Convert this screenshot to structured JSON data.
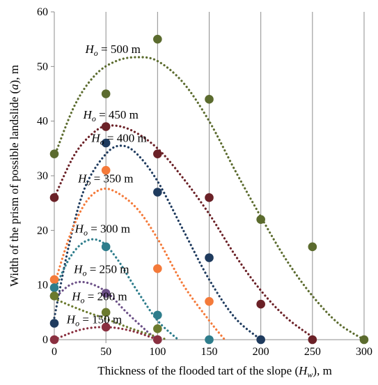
{
  "chart_data": {
    "type": "scatter",
    "xlabel_main": "Thickness of the flooded tart of the slope (",
    "xlabel_var": "H",
    "xlabel_sub": "w",
    "xlabel_tail": "), m",
    "ylabel_main": "Width of the prism of possible landslide (",
    "ylabel_var": "a",
    "ylabel_tail": "), m",
    "xlim": [
      0,
      300
    ],
    "ylim": [
      0,
      60
    ],
    "x_ticks": [
      0,
      50,
      100,
      150,
      200,
      250,
      300
    ],
    "y_ticks": [
      0,
      10,
      20,
      30,
      40,
      50,
      60
    ],
    "grid": "vertical",
    "series": [
      {
        "name": "Ho = 500 m",
        "label_var": "H",
        "label_sub": "o",
        "label_tail": " = 500 m",
        "color": "#5b6b2e",
        "points": [
          [
            0,
            34
          ],
          [
            50,
            45
          ],
          [
            100,
            55
          ],
          [
            150,
            44
          ],
          [
            200,
            22
          ],
          [
            250,
            17
          ],
          [
            300,
            0
          ]
        ],
        "trend": [
          [
            0,
            33.5
          ],
          [
            20,
            43
          ],
          [
            40,
            48.5
          ],
          [
            60,
            51
          ],
          [
            80,
            51.7
          ],
          [
            100,
            51
          ],
          [
            125,
            47
          ],
          [
            150,
            40
          ],
          [
            175,
            31
          ],
          [
            200,
            22.5
          ],
          [
            225,
            14.5
          ],
          [
            250,
            8
          ],
          [
            275,
            3
          ],
          [
            300,
            0
          ]
        ]
      },
      {
        "name": "Ho = 450 m",
        "label_var": "H",
        "label_sub": "o",
        "label_tail": " = 450 m",
        "color": "#6b2127",
        "points": [
          [
            0,
            26
          ],
          [
            50,
            39
          ],
          [
            100,
            34
          ],
          [
            150,
            26
          ],
          [
            200,
            6.5
          ],
          [
            250,
            0
          ]
        ],
        "trend": [
          [
            0,
            26
          ],
          [
            20,
            34
          ],
          [
            40,
            38.2
          ],
          [
            55,
            39.2
          ],
          [
            75,
            38.3
          ],
          [
            100,
            35
          ],
          [
            125,
            29.5
          ],
          [
            150,
            23
          ],
          [
            175,
            15.5
          ],
          [
            200,
            9
          ],
          [
            225,
            4
          ],
          [
            250,
            0.5
          ]
        ]
      },
      {
        "name": "Ho = 400 m",
        "label_var": "H",
        "label_sub": "o",
        "label_tail": " = 400 m",
        "color": "#1f3b5e",
        "points": [
          [
            0,
            3
          ],
          [
            50,
            36
          ],
          [
            100,
            27
          ],
          [
            150,
            15
          ],
          [
            200,
            0
          ]
        ],
        "trend": [
          [
            0,
            4
          ],
          [
            15,
            18
          ],
          [
            30,
            28
          ],
          [
            50,
            34
          ],
          [
            65,
            35.5
          ],
          [
            80,
            34
          ],
          [
            100,
            29
          ],
          [
            125,
            20
          ],
          [
            150,
            11
          ],
          [
            175,
            4
          ],
          [
            200,
            0
          ]
        ]
      },
      {
        "name": "Ho = 350 m",
        "label_var": "H",
        "label_sub": "o",
        "label_tail": " = 350 m",
        "color": "#f47a3a",
        "points": [
          [
            0,
            11
          ],
          [
            50,
            31
          ],
          [
            100,
            13
          ],
          [
            150,
            7
          ]
        ],
        "trend": [
          [
            0,
            10
          ],
          [
            15,
            19
          ],
          [
            30,
            25
          ],
          [
            45,
            27.5
          ],
          [
            60,
            27
          ],
          [
            80,
            24
          ],
          [
            100,
            18.5
          ],
          [
            125,
            10
          ],
          [
            150,
            3.5
          ],
          [
            165,
            0
          ]
        ]
      },
      {
        "name": "Ho = 300 m",
        "label_var": "H",
        "label_sub": "o",
        "label_tail": " = 300 m",
        "color": "#2e7d8c",
        "points": [
          [
            0,
            9.5
          ],
          [
            50,
            17
          ],
          [
            100,
            4.5
          ],
          [
            150,
            0
          ]
        ],
        "trend": [
          [
            0,
            9
          ],
          [
            15,
            15
          ],
          [
            30,
            18
          ],
          [
            45,
            18
          ],
          [
            60,
            15
          ],
          [
            80,
            9
          ],
          [
            100,
            3.5
          ],
          [
            120,
            0
          ]
        ]
      },
      {
        "name": "Ho = 250 m",
        "label_var": "H",
        "label_sub": "o",
        "label_tail": " = 250 m",
        "color": "#6b4f86",
        "points": [
          [
            0,
            8
          ],
          [
            50,
            8.5
          ],
          [
            100,
            0
          ]
        ],
        "trend": [
          [
            0,
            7.5
          ],
          [
            15,
            10
          ],
          [
            30,
            10.5
          ],
          [
            50,
            8.8
          ],
          [
            70,
            5
          ],
          [
            90,
            1.5
          ],
          [
            100,
            0
          ]
        ]
      },
      {
        "name": "Ho = 200 m",
        "label_var": "H",
        "label_sub": "o",
        "label_tail": " = 200 m",
        "color": "#6b7a2e",
        "points": [
          [
            0,
            8
          ],
          [
            50,
            5
          ],
          [
            100,
            2
          ]
        ],
        "trend": [
          [
            0,
            7.5
          ],
          [
            25,
            5.5
          ],
          [
            50,
            3.8
          ],
          [
            75,
            2
          ],
          [
            100,
            0.5
          ],
          [
            110,
            0
          ]
        ]
      },
      {
        "name": "Ho = 150 m",
        "label_var": "H",
        "label_sub": "o",
        "label_tail": " = 150 m",
        "color": "#8a3040",
        "points": [
          [
            0,
            0
          ],
          [
            50,
            2.3
          ],
          [
            100,
            0
          ]
        ],
        "trend": [
          [
            0,
            0
          ],
          [
            25,
            1.8
          ],
          [
            50,
            2.3
          ],
          [
            75,
            1.6
          ],
          [
            100,
            0
          ]
        ]
      }
    ]
  }
}
